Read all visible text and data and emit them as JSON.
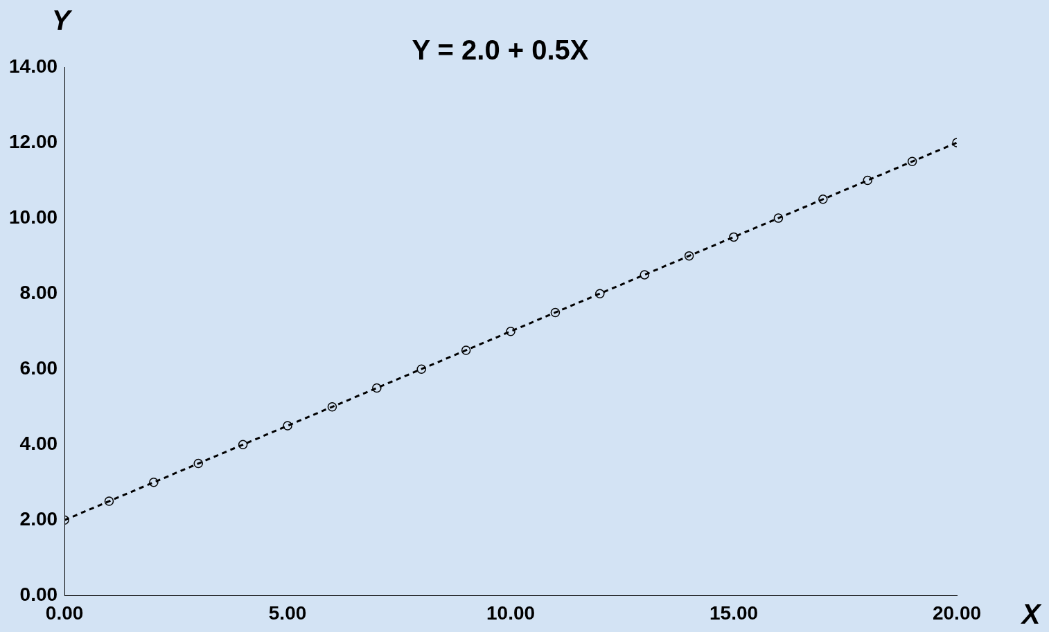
{
  "chart_data": {
    "type": "line",
    "title": "Y = 2.0 + 0.5X",
    "xlabel": "X",
    "ylabel": "Y",
    "x": [
      0,
      1,
      2,
      3,
      4,
      5,
      6,
      7,
      8,
      9,
      10,
      11,
      12,
      13,
      14,
      15,
      16,
      17,
      18,
      19,
      20
    ],
    "series": [
      {
        "color": "#000000",
        "values": [
          2,
          2.5,
          3,
          3.5,
          4,
          4.5,
          5,
          5.5,
          6,
          6.5,
          7,
          7.5,
          8,
          8.5,
          9,
          9.5,
          10,
          10.5,
          11,
          11.5,
          12
        ]
      }
    ],
    "xlim": [
      0,
      20
    ],
    "ylim": [
      0,
      14
    ],
    "xticks": [
      {
        "value": 0,
        "label": "0.00"
      },
      {
        "value": 5,
        "label": "5.00"
      },
      {
        "value": 10,
        "label": "10.00"
      },
      {
        "value": 15,
        "label": "15.00"
      },
      {
        "value": 20,
        "label": "20.00"
      }
    ],
    "yticks": [
      {
        "value": 0,
        "label": "0.00"
      },
      {
        "value": 2,
        "label": "2.00"
      },
      {
        "value": 4,
        "label": "4.00"
      },
      {
        "value": 6,
        "label": "6.00"
      },
      {
        "value": 8,
        "label": "8.00"
      },
      {
        "value": 10,
        "label": "10.00"
      },
      {
        "value": 12,
        "label": "12.00"
      },
      {
        "value": 14,
        "label": "14.00"
      }
    ],
    "marker": "circle",
    "line_style": "dashed",
    "grid": false
  }
}
